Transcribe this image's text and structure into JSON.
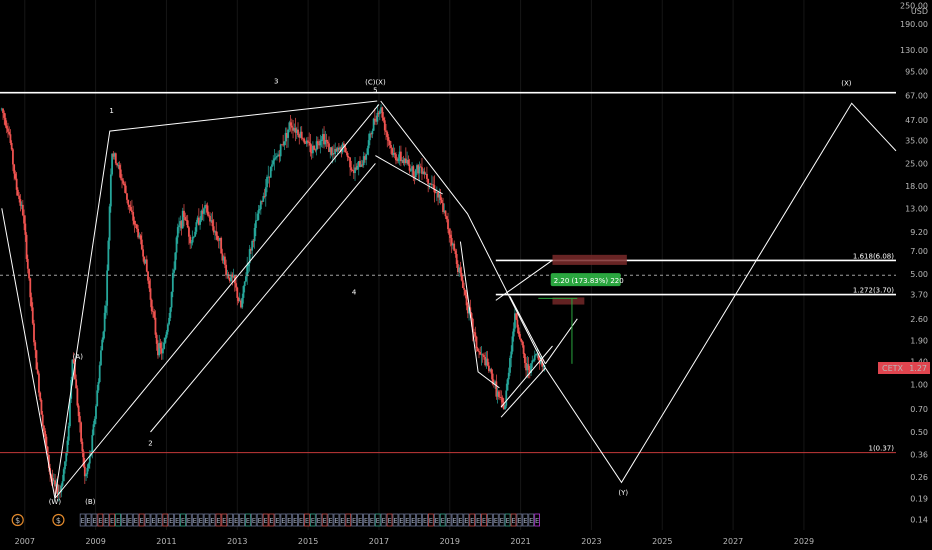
{
  "chart_data": {
    "type": "candlestick",
    "scale": "log",
    "symbol": "CETX",
    "last_price_label": "1.27",
    "currency_label": "USD",
    "ylim": [
      0.12,
      270
    ],
    "xlim": [
      2006.3,
      2031.6
    ],
    "y_ticks": [
      "250.00",
      "190.00",
      "130.00",
      "95.00",
      "67.00",
      "47.00",
      "35.00",
      "25.00",
      "18.00",
      "13.00",
      "9.20",
      "7.00",
      "5.00",
      "3.70",
      "2.60",
      "1.90",
      "1.40",
      "1.00",
      "0.70",
      "0.50",
      "0.36",
      "0.26",
      "0.19",
      "0.14"
    ],
    "x_ticks": [
      "2007",
      "2009",
      "2011",
      "2013",
      "2015",
      "2017",
      "2019",
      "2021",
      "2023",
      "2025",
      "2027",
      "2029"
    ],
    "price_path": [
      [
        2006.35,
        55
      ],
      [
        2006.55,
        40
      ],
      [
        2006.75,
        18
      ],
      [
        2006.95,
        12
      ],
      [
        2007.1,
        5
      ],
      [
        2007.3,
        1.5
      ],
      [
        2007.5,
        0.6
      ],
      [
        2007.7,
        0.28
      ],
      [
        2007.85,
        0.22
      ],
      [
        2008.0,
        0.21
      ],
      [
        2008.2,
        0.4
      ],
      [
        2008.35,
        1.6
      ],
      [
        2008.5,
        0.7
      ],
      [
        2008.7,
        0.25
      ],
      [
        2008.85,
        0.35
      ],
      [
        2009.0,
        0.7
      ],
      [
        2009.15,
        1.6
      ],
      [
        2009.3,
        3.5
      ],
      [
        2009.45,
        30
      ],
      [
        2009.6,
        25
      ],
      [
        2009.8,
        18
      ],
      [
        2010.0,
        12
      ],
      [
        2010.2,
        9
      ],
      [
        2010.4,
        6
      ],
      [
        2010.6,
        3
      ],
      [
        2010.75,
        1.7
      ],
      [
        2010.9,
        1.6
      ],
      [
        2011.1,
        3
      ],
      [
        2011.3,
        9
      ],
      [
        2011.5,
        12
      ],
      [
        2011.7,
        8
      ],
      [
        2011.9,
        11
      ],
      [
        2012.1,
        13
      ],
      [
        2012.3,
        10
      ],
      [
        2012.5,
        8
      ],
      [
        2012.7,
        5
      ],
      [
        2012.9,
        4.5
      ],
      [
        2013.1,
        3
      ],
      [
        2013.3,
        6
      ],
      [
        2013.6,
        12
      ],
      [
        2013.9,
        22
      ],
      [
        2014.2,
        30
      ],
      [
        2014.5,
        45
      ],
      [
        2014.8,
        38
      ],
      [
        2015.1,
        30
      ],
      [
        2015.4,
        38
      ],
      [
        2015.7,
        28
      ],
      [
        2016.0,
        32
      ],
      [
        2016.3,
        22
      ],
      [
        2016.6,
        27
      ],
      [
        2016.9,
        50
      ],
      [
        2017.05,
        56
      ],
      [
        2017.2,
        40
      ],
      [
        2017.4,
        28
      ],
      [
        2017.6,
        27
      ],
      [
        2017.8,
        25
      ],
      [
        2018.0,
        22
      ],
      [
        2018.2,
        24
      ],
      [
        2018.4,
        20
      ],
      [
        2018.6,
        17
      ],
      [
        2018.8,
        13
      ],
      [
        2019.0,
        9
      ],
      [
        2019.2,
        6
      ],
      [
        2019.4,
        4
      ],
      [
        2019.6,
        2.5
      ],
      [
        2019.8,
        1.6
      ],
      [
        2020.0,
        1.4
      ],
      [
        2020.2,
        1.1
      ],
      [
        2020.4,
        0.8
      ],
      [
        2020.55,
        0.7
      ],
      [
        2020.7,
        1.5
      ],
      [
        2020.85,
        2.8
      ],
      [
        2021.0,
        1.9
      ],
      [
        2021.15,
        1.25
      ],
      [
        2021.3,
        1.3
      ],
      [
        2021.45,
        1.6
      ],
      [
        2021.6,
        1.35
      ],
      [
        2021.7,
        1.27
      ]
    ],
    "wave_labels": [
      {
        "text": "1",
        "x": 2009.45,
        "y": 52
      },
      {
        "text": "2",
        "x": 2010.55,
        "y": 0.41
      },
      {
        "text": "3",
        "x": 2014.1,
        "y": 80
      },
      {
        "text": "4",
        "x": 2016.3,
        "y": 3.7
      },
      {
        "text": "5",
        "x": 2016.9,
        "y": 70
      },
      {
        "text": "(C)(X)",
        "x": 2016.9,
        "y": 79
      },
      {
        "text": "(A)",
        "x": 2008.5,
        "y": 1.45
      },
      {
        "text": "(B)",
        "x": 2008.85,
        "y": 0.175
      },
      {
        "text": "(W)",
        "x": 2007.85,
        "y": 0.175
      },
      {
        "text": "(X)",
        "x": 2030.2,
        "y": 78
      },
      {
        "text": "(Y)",
        "x": 2023.9,
        "y": 0.2
      }
    ],
    "projection": [
      [
        2017.05,
        62
      ],
      [
        2019.5,
        12
      ],
      [
        2021.7,
        1.27
      ],
      [
        2023.85,
        0.24
      ],
      [
        2030.35,
        60
      ],
      [
        2031.6,
        30
      ]
    ],
    "trend_lines": [
      [
        [
          2007.85,
          0.19
        ],
        [
          2009.4,
          40
        ],
        [
          2016.95,
          62
        ]
      ],
      [
        [
          2006.35,
          13
        ],
        [
          2007.85,
          0.19
        ],
        [
          2017.0,
          59
        ]
      ],
      [
        [
          2010.55,
          0.5
        ],
        [
          2016.9,
          25
        ]
      ],
      [
        [
          2016.9,
          28
        ],
        [
          2018.8,
          16
        ]
      ],
      [
        [
          2019.3,
          8
        ],
        [
          2019.8,
          1.2
        ],
        [
          2020.4,
          0.95
        ]
      ],
      [
        [
          2020.45,
          0.62
        ],
        [
          2021.7,
          1.27
        ]
      ],
      [
        [
          2020.45,
          0.72
        ],
        [
          2021.9,
          1.75
        ]
      ],
      [
        [
          2020.7,
          3.6
        ],
        [
          2021.7,
          1.35
        ]
      ],
      [
        [
          2020.3,
          3.4
        ],
        [
          2021.9,
          6.1
        ]
      ],
      [
        [
          2021.7,
          1.35
        ],
        [
          2022.6,
          2.6
        ]
      ]
    ],
    "horizontal_levels": [
      {
        "y": 70,
        "color": "#ffffff",
        "x_from": 2006.3,
        "label": ""
      },
      {
        "y": 6.08,
        "color": "#ffffff",
        "x_from": 2020.3,
        "label": "1.618(6.08)"
      },
      {
        "y": 3.7,
        "color": "#ffffff",
        "x_from": 2020.3,
        "label": "1.272(3.70)"
      },
      {
        "y": 0.37,
        "color": "#c43a3a",
        "x_from": 2006.3,
        "label": "1(0.37)"
      },
      {
        "y": 4.9,
        "color": "#a0a0a0",
        "x_from": 2006.3,
        "dashed": true,
        "label": ""
      }
    ],
    "measure_label": "2.20 (173.83%) 220",
    "events_bar": [
      "E",
      "E",
      "E",
      "E",
      "E",
      "E",
      "E",
      "E",
      "E",
      "E",
      "E",
      "E",
      "E",
      "E",
      "E",
      "E",
      "E",
      "E",
      "E",
      "E",
      "E",
      "E",
      "E",
      "E",
      "E",
      "E",
      "E",
      "E",
      "E",
      "E",
      "E",
      "E",
      "E",
      "E",
      "E",
      "E",
      "E",
      "E",
      "E",
      "E",
      "E",
      "E",
      "E",
      "E",
      "E",
      "E",
      "E",
      "E",
      "E",
      "E",
      "E",
      "E",
      "E",
      "E",
      "E",
      "E",
      "E",
      "E",
      "E",
      "E",
      "E",
      "E",
      "E",
      "E",
      "E",
      "E",
      "E",
      "E",
      "E",
      "E",
      "E",
      "E",
      "E",
      "E",
      "E",
      "E",
      "E",
      "E"
    ],
    "dividend_markers": [
      "$",
      "$"
    ],
    "colors": {
      "up": "#26a69a",
      "down": "#ef5350",
      "line": "#ffffff",
      "price_badge": "#e0454f",
      "measure_box": "#2aa63f",
      "zone": "#7a2a2a"
    }
  }
}
